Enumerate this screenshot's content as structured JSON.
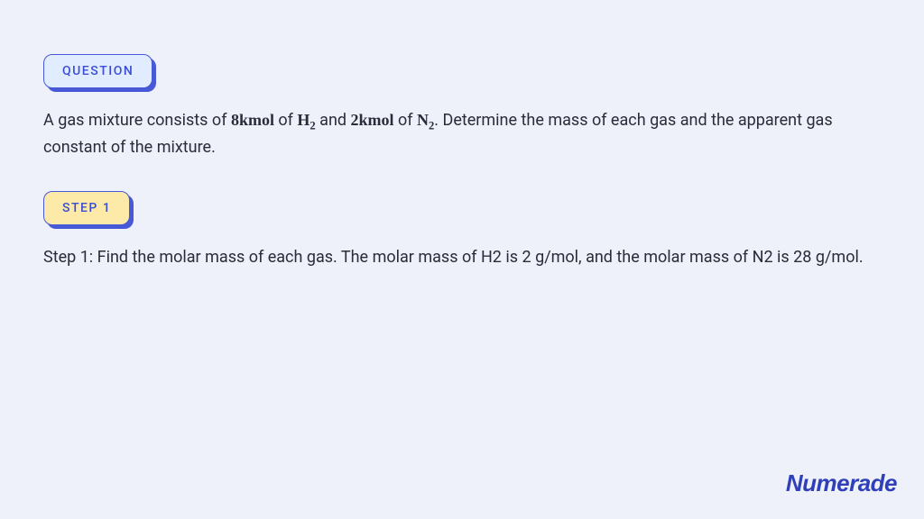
{
  "badges": {
    "question": {
      "label": "QUESTION",
      "bg": "#e2ecff",
      "border": "#4759d6",
      "text_color": "#3b4fd4",
      "shadow": "#4759d6"
    },
    "step1": {
      "label": "STEP 1",
      "bg": "#fde9a8",
      "border": "#4759d6",
      "text_color": "#3b4fd4",
      "shadow": "#4759d6"
    }
  },
  "question": {
    "pre1": "A gas mixture consists of ",
    "amt1": "8kmol",
    "of1": " of ",
    "gas1_base": "H",
    "gas1_sub": "2",
    "mid": " and ",
    "amt2": "2kmol",
    "of2": " of ",
    "gas2_base": "N",
    "gas2_sub": "2",
    "post": ". Determine the mass of each gas and the apparent gas constant of the mixture."
  },
  "step1_text": "Step 1: Find the molar mass of each gas. The molar mass of H2 is 2 g/mol, and the molar mass of N2 is 28 g/mol.",
  "logo": "Numerade",
  "colors": {
    "page_bg": "#eef0fa",
    "body_text": "#2a2c3a",
    "logo": "#2f3fb8"
  },
  "typography": {
    "body_fontsize": 18,
    "badge_fontsize": 14,
    "logo_fontsize": 26
  }
}
